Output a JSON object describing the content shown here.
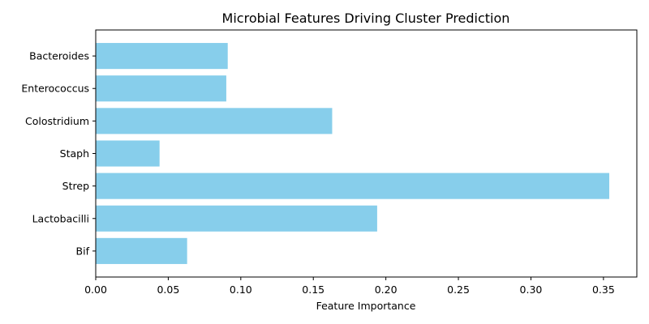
{
  "chart_data": {
    "type": "bar",
    "orientation": "horizontal",
    "title": "Microbial Features Driving Cluster Prediction",
    "xlabel": "Feature Importance",
    "ylabel": "",
    "categories": [
      "Bif",
      "Lactobacilli",
      "Strep",
      "Staph",
      "Colostridium",
      "Enterococcus",
      "Bacteroides"
    ],
    "values": [
      0.063,
      0.194,
      0.354,
      0.044,
      0.163,
      0.09,
      0.091
    ],
    "xlim": [
      0,
      0.373
    ],
    "xticks": [
      "0.00",
      "0.05",
      "0.10",
      "0.15",
      "0.20",
      "0.25",
      "0.30",
      "0.35"
    ],
    "bar_color": "#87ceeb",
    "grid": false,
    "legend": "none"
  }
}
